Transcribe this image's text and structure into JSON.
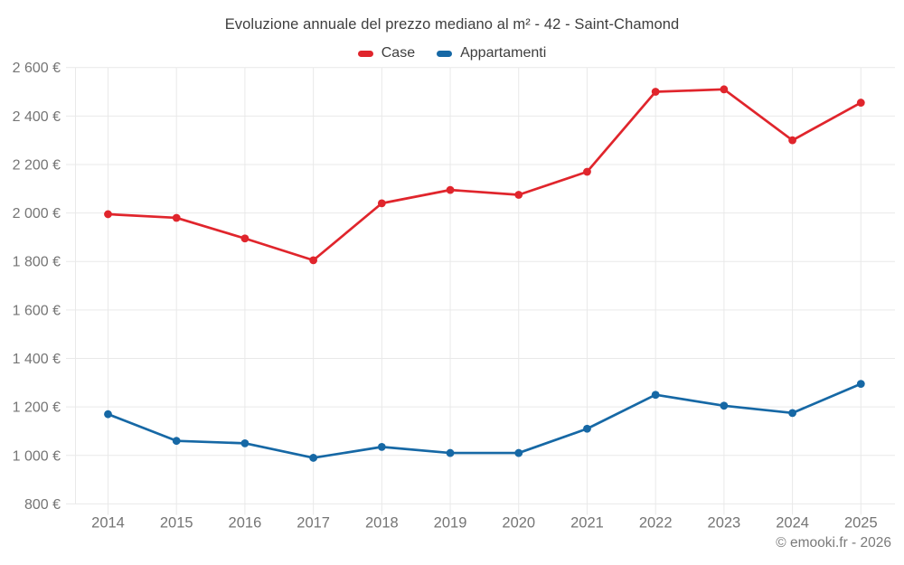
{
  "chart_data": {
    "type": "line",
    "title": "Evoluzione annuale del prezzo mediano al m² - 42 - Saint-Chamond",
    "footer": "© emooki.fr - 2026",
    "categories": [
      "2014",
      "2015",
      "2016",
      "2017",
      "2018",
      "2019",
      "2020",
      "2021",
      "2022",
      "2023",
      "2024",
      "2025"
    ],
    "series": [
      {
        "name": "Case",
        "color": "#e0252c",
        "values": [
          1995,
          1980,
          1895,
          1805,
          2040,
          2095,
          2075,
          2170,
          2500,
          2510,
          2300,
          2455
        ]
      },
      {
        "name": "Appartamenti",
        "color": "#1668a5",
        "values": [
          1170,
          1060,
          1050,
          990,
          1035,
          1010,
          1010,
          1110,
          1250,
          1205,
          1175,
          1295
        ]
      }
    ],
    "ylim": [
      800,
      2600
    ],
    "ytick_step": 200,
    "ytick_labels": [
      "800 €",
      "1 000 €",
      "1 200 €",
      "1 400 €",
      "1 600 €",
      "1 800 €",
      "2 000 €",
      "2 200 €",
      "2 400 €",
      "2 600 €"
    ],
    "currency_suffix": " €",
    "grid": true,
    "legend_position": "top",
    "axis_text_color": "#757575",
    "grid_color": "#e9e9e9"
  }
}
